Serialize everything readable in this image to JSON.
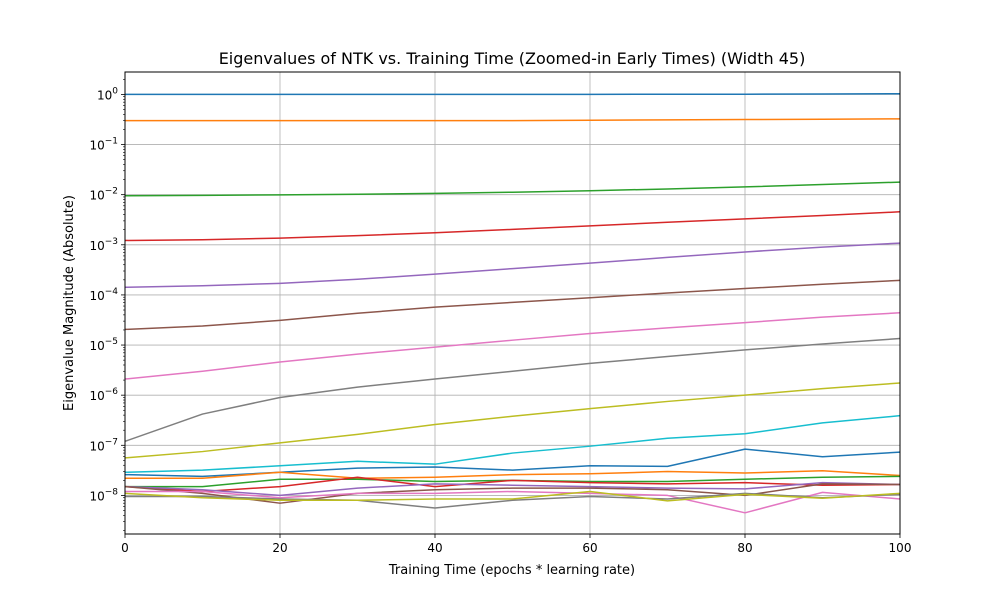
{
  "chart_data": {
    "type": "line",
    "title": "Eigenvalues of NTK vs. Training Time (Zoomed-in Early Times) (Width 45)",
    "xlabel": "Training Time (epochs * learning rate)",
    "ylabel": "Eigenvalue Magnitude (Absolute)",
    "xlim": [
      0,
      100
    ],
    "ylim": [
      1.7e-09,
      2.8
    ],
    "yscale": "log",
    "grid": true,
    "x_ticks": [
      0,
      20,
      40,
      60,
      80,
      100
    ],
    "x_tick_labels": [
      "0",
      "20",
      "40",
      "60",
      "80",
      "100"
    ],
    "y_ticks": [
      1e-08,
      1e-07,
      1e-06,
      1e-05,
      0.0001,
      0.001,
      0.01,
      0.1,
      1
    ],
    "y_tick_base": "10",
    "y_tick_exponents": [
      "−8",
      "−7",
      "−6",
      "−5",
      "−4",
      "−3",
      "−2",
      "−1",
      "0"
    ],
    "x": [
      0,
      10,
      20,
      30,
      40,
      50,
      60,
      70,
      80,
      90,
      100
    ],
    "series": [
      {
        "color": "#1f77b4",
        "values": [
          1.0,
          1.0,
          1.0,
          1.0,
          1.0,
          1.0,
          1.0,
          1.01,
          1.01,
          1.02,
          1.03
        ]
      },
      {
        "color": "#ff7f0e",
        "values": [
          0.3,
          0.3,
          0.3,
          0.3,
          0.3,
          0.3,
          0.305,
          0.31,
          0.315,
          0.32,
          0.325
        ]
      },
      {
        "color": "#2ca02c",
        "values": [
          0.0095,
          0.0097,
          0.0099,
          0.0102,
          0.0106,
          0.0112,
          0.012,
          0.013,
          0.0143,
          0.016,
          0.0178
        ]
      },
      {
        "color": "#d62728",
        "values": [
          0.00122,
          0.00126,
          0.00136,
          0.00152,
          0.00174,
          0.00203,
          0.00238,
          0.00282,
          0.00328,
          0.00385,
          0.00455
        ]
      },
      {
        "color": "#9467bd",
        "values": [
          0.000142,
          0.000152,
          0.00017,
          0.000205,
          0.00026,
          0.000335,
          0.00043,
          0.00056,
          0.00072,
          0.0009,
          0.00108
        ]
      },
      {
        "color": "#8c564b",
        "values": [
          2.05e-05,
          2.4e-05,
          3.1e-05,
          4.3e-05,
          5.7e-05,
          7.1e-05,
          8.8e-05,
          0.000109,
          0.000134,
          0.000163,
          0.000195
        ]
      },
      {
        "color": "#e377c2",
        "values": [
          2.1e-06,
          3e-06,
          4.6e-06,
          6.6e-06,
          9.1e-06,
          1.25e-05,
          1.7e-05,
          2.2e-05,
          2.8e-05,
          3.6e-05,
          4.4e-05
        ]
      },
      {
        "color": "#7f7f7f",
        "values": [
          1.2e-07,
          4.2e-07,
          9e-07,
          1.45e-06,
          2.1e-06,
          3e-06,
          4.3e-06,
          5.9e-06,
          8e-06,
          1.05e-05,
          1.35e-05
        ]
      },
      {
        "color": "#bcbd22",
        "values": [
          5.6e-08,
          7.5e-08,
          1.12e-07,
          1.65e-07,
          2.6e-07,
          3.8e-07,
          5.4e-07,
          7.5e-07,
          1e-06,
          1.35e-06,
          1.75e-06
        ]
      },
      {
        "color": "#17becf",
        "values": [
          2.9e-08,
          3.2e-08,
          3.9e-08,
          4.8e-08,
          4.2e-08,
          7e-08,
          9.6e-08,
          1.38e-07,
          1.7e-07,
          2.8e-07,
          3.9e-07
        ]
      },
      {
        "color": "#1f77b4",
        "values": [
          2.6e-08,
          2.4e-08,
          2.9e-08,
          3.5e-08,
          3.7e-08,
          3.2e-08,
          3.9e-08,
          3.8e-08,
          8.4e-08,
          5.9e-08,
          7.3e-08
        ]
      },
      {
        "color": "#ff7f0e",
        "values": [
          2.2e-08,
          2.2e-08,
          2.9e-08,
          2.2e-08,
          2.3e-08,
          2.6e-08,
          2.7e-08,
          3e-08,
          2.8e-08,
          3.1e-08,
          2.5e-08
        ]
      },
      {
        "color": "#2ca02c",
        "values": [
          1.5e-08,
          1.5e-08,
          2.1e-08,
          2.1e-08,
          1.9e-08,
          2e-08,
          1.9e-08,
          1.9e-08,
          2.1e-08,
          2.3e-08,
          2.4e-08
        ]
      },
      {
        "color": "#d62728",
        "values": [
          1.5e-08,
          1.2e-08,
          1.5e-08,
          2.3e-08,
          1.5e-08,
          2e-08,
          1.8e-08,
          1.7e-08,
          1.8e-08,
          1.6e-08,
          1.65e-08
        ]
      },
      {
        "color": "#9467bd",
        "values": [
          1.5e-08,
          1.3e-08,
          1e-08,
          1.4e-08,
          1.7e-08,
          1.6e-08,
          1.5e-08,
          1.4e-08,
          1.35e-08,
          1.8e-08,
          1.65e-08
        ]
      },
      {
        "color": "#8c564b",
        "values": [
          1.5e-08,
          1.1e-08,
          7e-09,
          1.1e-08,
          1.3e-08,
          1.4e-08,
          1.4e-08,
          1.3e-08,
          1e-08,
          1.7e-08,
          1.65e-08
        ]
      },
      {
        "color": "#e377c2",
        "values": [
          1.2e-08,
          1.2e-08,
          9e-09,
          1.1e-08,
          1.1e-08,
          1.2e-08,
          1.1e-08,
          1e-08,
          4.5e-09,
          1.15e-08,
          8.5e-09
        ]
      },
      {
        "color": "#7f7f7f",
        "values": [
          9.5e-09,
          9.5e-09,
          8.5e-09,
          8e-09,
          5.6e-09,
          8e-09,
          9.5e-09,
          8.5e-09,
          1.1e-08,
          9e-09,
          1.05e-08
        ]
      },
      {
        "color": "#bcbd22",
        "values": [
          1.1e-08,
          9e-09,
          8e-09,
          8e-09,
          8.5e-09,
          8.5e-09,
          1.2e-08,
          7.8e-09,
          1.05e-08,
          8.8e-09,
          1.1e-08
        ]
      }
    ]
  }
}
